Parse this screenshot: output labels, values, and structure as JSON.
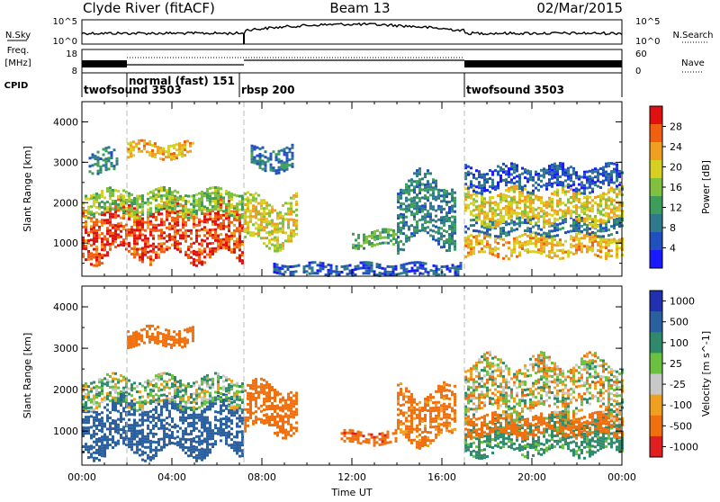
{
  "header": {
    "station": "Clyde River (fitACF)",
    "beam": "Beam 13",
    "date": "02/Mar/2015"
  },
  "status_panel": {
    "nsky_label": "N.Sky",
    "nsky_ticks": [
      "10^5",
      "10^0"
    ],
    "nsearch_label": "N.Search",
    "nsearch_ticks": [
      "10^5",
      "10^0"
    ],
    "freq_label": "Freq.",
    "freq_unit": "[MHz]",
    "freq_ticks": [
      "18",
      "8"
    ],
    "nave_label": "Nave",
    "nave_ticks": [
      "60",
      "0"
    ],
    "cpid_label": "CPID",
    "cpid_segments": [
      {
        "label": "twofsound 3503",
        "start_hr": 0,
        "end_hr": 2
      },
      {
        "label": "normal (fast) 151",
        "start_hr": 2,
        "end_hr": 7
      },
      {
        "label": "rbsp 200",
        "start_hr": 7,
        "end_hr": 17
      },
      {
        "label": "twofsound 3503",
        "start_hr": 17,
        "end_hr": 24
      }
    ]
  },
  "chart_data": [
    {
      "type": "heatmap",
      "panel": "power",
      "ylabel": "Slant Range [km]",
      "ylim": [
        180,
        4500
      ],
      "yticks": [
        "1000",
        "2000",
        "3000",
        "4000"
      ],
      "colorbar_label": "Power [dB]",
      "colorbar_range": [
        0,
        32
      ],
      "colorbar_ticks": [
        "28",
        "24",
        "20",
        "16",
        "12",
        "8",
        "4"
      ],
      "colorbar_colors": [
        "#1a1aff",
        "#2050c0",
        "#2e7a8a",
        "#3c9e5a",
        "#7fc040",
        "#d6d020",
        "#f0a020",
        "#f06010",
        "#e01010"
      ],
      "regions": [
        {
          "t0": 0.0,
          "t1": 7.2,
          "r0": 650,
          "r1": 1900,
          "level": 28
        },
        {
          "t0": 0.0,
          "t1": 7.2,
          "r0": 1700,
          "r1": 2300,
          "level": 16
        },
        {
          "t0": 0.3,
          "t1": 1.6,
          "r0": 2700,
          "r1": 3300,
          "level": 10
        },
        {
          "t0": 2.0,
          "t1": 5.0,
          "r0": 3100,
          "r1": 3500,
          "level": 22
        },
        {
          "t0": 7.2,
          "t1": 9.6,
          "r0": 1000,
          "r1": 2100,
          "level": 20
        },
        {
          "t0": 7.5,
          "t1": 9.4,
          "r0": 2800,
          "r1": 3400,
          "level": 8
        },
        {
          "t0": 8.5,
          "t1": 16.8,
          "r0": 200,
          "r1": 500,
          "level": 6
        },
        {
          "t0": 12.0,
          "t1": 14.0,
          "r0": 900,
          "r1": 1300,
          "level": 14
        },
        {
          "t0": 14.0,
          "t1": 16.6,
          "r0": 1000,
          "r1": 2600,
          "level": 10
        },
        {
          "t0": 17.0,
          "t1": 24.0,
          "r0": 700,
          "r1": 1200,
          "level": 22
        },
        {
          "t0": 17.0,
          "t1": 24.0,
          "r0": 1200,
          "r1": 1600,
          "level": 8
        },
        {
          "t0": 17.0,
          "t1": 24.0,
          "r0": 1500,
          "r1": 2300,
          "level": 20
        },
        {
          "t0": 17.0,
          "t1": 24.0,
          "r0": 2300,
          "r1": 2900,
          "level": 6
        }
      ]
    },
    {
      "type": "heatmap",
      "panel": "velocity",
      "ylabel": "Slant Range [km]",
      "ylim": [
        180,
        4500
      ],
      "yticks": [
        "1000",
        "2000",
        "3000",
        "4000"
      ],
      "colorbar_label": "Velocity [m s^-1]",
      "colorbar_range": [
        -1200,
        1200
      ],
      "colorbar_ticks": [
        "1000",
        "500",
        "100",
        "25",
        "-25",
        "-100",
        "-500",
        "-1000"
      ],
      "colorbar_colors": [
        "#2030b0",
        "#2a60a0",
        "#2e8a6a",
        "#6cc040",
        "#c8c8c8",
        "#f0a020",
        "#f07010",
        "#e02020"
      ],
      "regions": [
        {
          "t0": 0.0,
          "t1": 7.2,
          "r0": 500,
          "r1": 1700,
          "level": 800
        },
        {
          "t0": 0.0,
          "t1": 7.2,
          "r0": 1600,
          "r1": 2300,
          "level": 60
        },
        {
          "t0": 2.0,
          "t1": 5.0,
          "r0": 3100,
          "r1": 3500,
          "level": -300
        },
        {
          "t0": 7.2,
          "t1": 9.6,
          "r0": 1000,
          "r1": 2100,
          "level": -300
        },
        {
          "t0": 11.5,
          "t1": 14.0,
          "r0": 700,
          "r1": 1000,
          "level": -400
        },
        {
          "t0": 14.0,
          "t1": 16.6,
          "r0": 800,
          "r1": 2000,
          "level": -200
        },
        {
          "t0": 17.0,
          "t1": 24.0,
          "r0": 500,
          "r1": 1300,
          "level": 200
        },
        {
          "t0": 17.0,
          "t1": 24.0,
          "r0": 900,
          "r1": 1400,
          "level": -300
        },
        {
          "t0": 17.0,
          "t1": 24.0,
          "r0": 1400,
          "r1": 2700,
          "level": 0
        }
      ]
    }
  ],
  "time_axis": {
    "label": "Time UT",
    "ticks": [
      "00:00",
      "04:00",
      "08:00",
      "12:00",
      "16:00",
      "20:00",
      "00:00"
    ]
  }
}
